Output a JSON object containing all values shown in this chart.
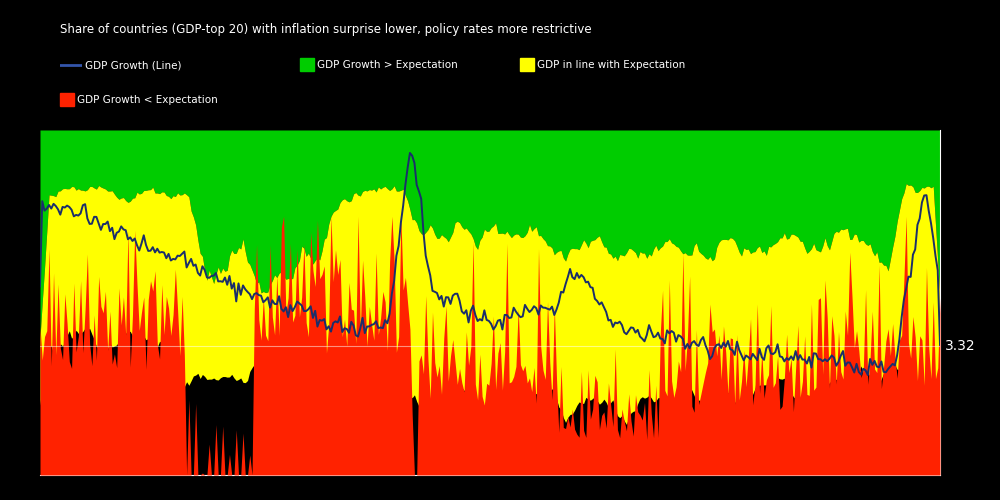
{
  "title": "Share of countries (GDP-top 20) with inflation surprise lower, policy rates more restrictive",
  "legend_items": [
    {
      "label": "GDP Growth (Line)",
      "color": "#3355aa"
    },
    {
      "label": "GDP Growth > Expectation",
      "color": "#00cc00"
    },
    {
      "label": "GDP in line with Expectation",
      "color": "#ffff00"
    },
    {
      "label": "GDP Growth < Expectation",
      "color": "#ff2200"
    }
  ],
  "reference_line_value": "3.32",
  "background_color": "#000000",
  "line_color": "#1a2e6b",
  "fig_width": 10.0,
  "fig_height": 5.0
}
